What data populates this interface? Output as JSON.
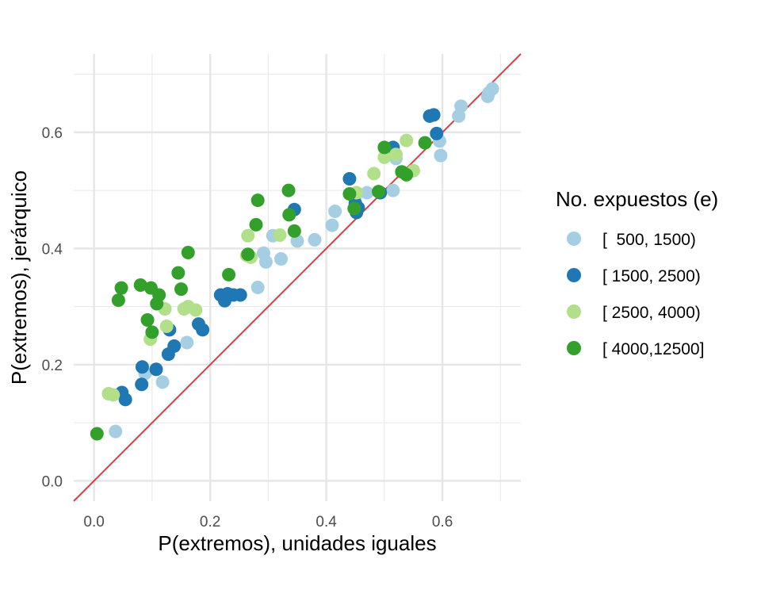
{
  "chart_data": {
    "type": "scatter",
    "xlabel": "P(extremos), unidades iguales",
    "ylabel": "P(extremos), jerárquico",
    "xlim": [
      -0.035,
      0.735
    ],
    "ylim": [
      -0.035,
      0.735
    ],
    "x_ticks": [
      0.0,
      0.2,
      0.4,
      0.6
    ],
    "y_ticks": [
      0.0,
      0.2,
      0.4,
      0.6
    ],
    "x_tick_labels": [
      "0.0",
      "0.2",
      "0.4",
      "0.6"
    ],
    "y_tick_labels": [
      "0.0",
      "0.2",
      "0.4",
      "0.6"
    ],
    "grid": true,
    "reference_line": {
      "slope": 1,
      "intercept": 0,
      "color": "#e8383d"
    },
    "legend": {
      "title": "No. expuestos (e)",
      "position": "right"
    },
    "series": [
      {
        "name": "[  500, 1500)",
        "color": "#a6cee3",
        "points": [
          [
            0.037,
            0.085
          ],
          [
            0.118,
            0.17
          ],
          [
            0.088,
            0.185
          ],
          [
            0.16,
            0.238
          ],
          [
            0.282,
            0.333
          ],
          [
            0.296,
            0.377
          ],
          [
            0.292,
            0.392
          ],
          [
            0.308,
            0.422
          ],
          [
            0.322,
            0.382
          ],
          [
            0.35,
            0.413
          ],
          [
            0.38,
            0.415
          ],
          [
            0.41,
            0.44
          ],
          [
            0.415,
            0.464
          ],
          [
            0.45,
            0.49
          ],
          [
            0.47,
            0.496
          ],
          [
            0.515,
            0.5
          ],
          [
            0.52,
            0.555
          ],
          [
            0.595,
            0.585
          ],
          [
            0.597,
            0.56
          ],
          [
            0.628,
            0.628
          ],
          [
            0.632,
            0.645
          ],
          [
            0.678,
            0.662
          ],
          [
            0.68,
            0.668
          ],
          [
            0.686,
            0.675
          ]
        ]
      },
      {
        "name": "[ 1500, 2500)",
        "color": "#1f78b4",
        "points": [
          [
            0.048,
            0.152
          ],
          [
            0.054,
            0.14
          ],
          [
            0.082,
            0.166
          ],
          [
            0.083,
            0.196
          ],
          [
            0.107,
            0.192
          ],
          [
            0.128,
            0.218
          ],
          [
            0.13,
            0.26
          ],
          [
            0.138,
            0.232
          ],
          [
            0.18,
            0.27
          ],
          [
            0.187,
            0.26
          ],
          [
            0.218,
            0.32
          ],
          [
            0.225,
            0.31
          ],
          [
            0.23,
            0.322
          ],
          [
            0.24,
            0.32
          ],
          [
            0.252,
            0.32
          ],
          [
            0.345,
            0.467
          ],
          [
            0.44,
            0.52
          ],
          [
            0.45,
            0.478
          ],
          [
            0.452,
            0.462
          ],
          [
            0.455,
            0.47
          ],
          [
            0.493,
            0.496
          ],
          [
            0.515,
            0.574
          ],
          [
            0.578,
            0.628
          ],
          [
            0.585,
            0.63
          ],
          [
            0.59,
            0.598
          ]
        ]
      },
      {
        "name": "[ 2500, 4000)",
        "color": "#b2df8a",
        "points": [
          [
            0.025,
            0.15
          ],
          [
            0.033,
            0.148
          ],
          [
            0.097,
            0.244
          ],
          [
            0.122,
            0.296
          ],
          [
            0.125,
            0.266
          ],
          [
            0.155,
            0.296
          ],
          [
            0.162,
            0.3
          ],
          [
            0.175,
            0.294
          ],
          [
            0.265,
            0.422
          ],
          [
            0.263,
            0.388
          ],
          [
            0.27,
            0.385
          ],
          [
            0.32,
            0.423
          ],
          [
            0.452,
            0.496
          ],
          [
            0.482,
            0.529
          ],
          [
            0.5,
            0.557
          ],
          [
            0.52,
            0.562
          ],
          [
            0.538,
            0.586
          ],
          [
            0.55,
            0.534
          ]
        ]
      },
      {
        "name": "[ 4000,12500]",
        "color": "#33a02c",
        "points": [
          [
            0.005,
            0.081
          ],
          [
            0.042,
            0.311
          ],
          [
            0.047,
            0.332
          ],
          [
            0.08,
            0.337
          ],
          [
            0.092,
            0.277
          ],
          [
            0.098,
            0.332
          ],
          [
            0.1,
            0.256
          ],
          [
            0.108,
            0.305
          ],
          [
            0.112,
            0.32
          ],
          [
            0.145,
            0.358
          ],
          [
            0.15,
            0.33
          ],
          [
            0.162,
            0.393
          ],
          [
            0.232,
            0.355
          ],
          [
            0.265,
            0.39
          ],
          [
            0.279,
            0.441
          ],
          [
            0.282,
            0.483
          ],
          [
            0.335,
            0.5
          ],
          [
            0.336,
            0.458
          ],
          [
            0.345,
            0.43
          ],
          [
            0.44,
            0.494
          ],
          [
            0.448,
            0.469
          ],
          [
            0.49,
            0.498
          ],
          [
            0.5,
            0.574
          ],
          [
            0.53,
            0.532
          ],
          [
            0.538,
            0.527
          ],
          [
            0.57,
            0.582
          ]
        ]
      }
    ]
  }
}
